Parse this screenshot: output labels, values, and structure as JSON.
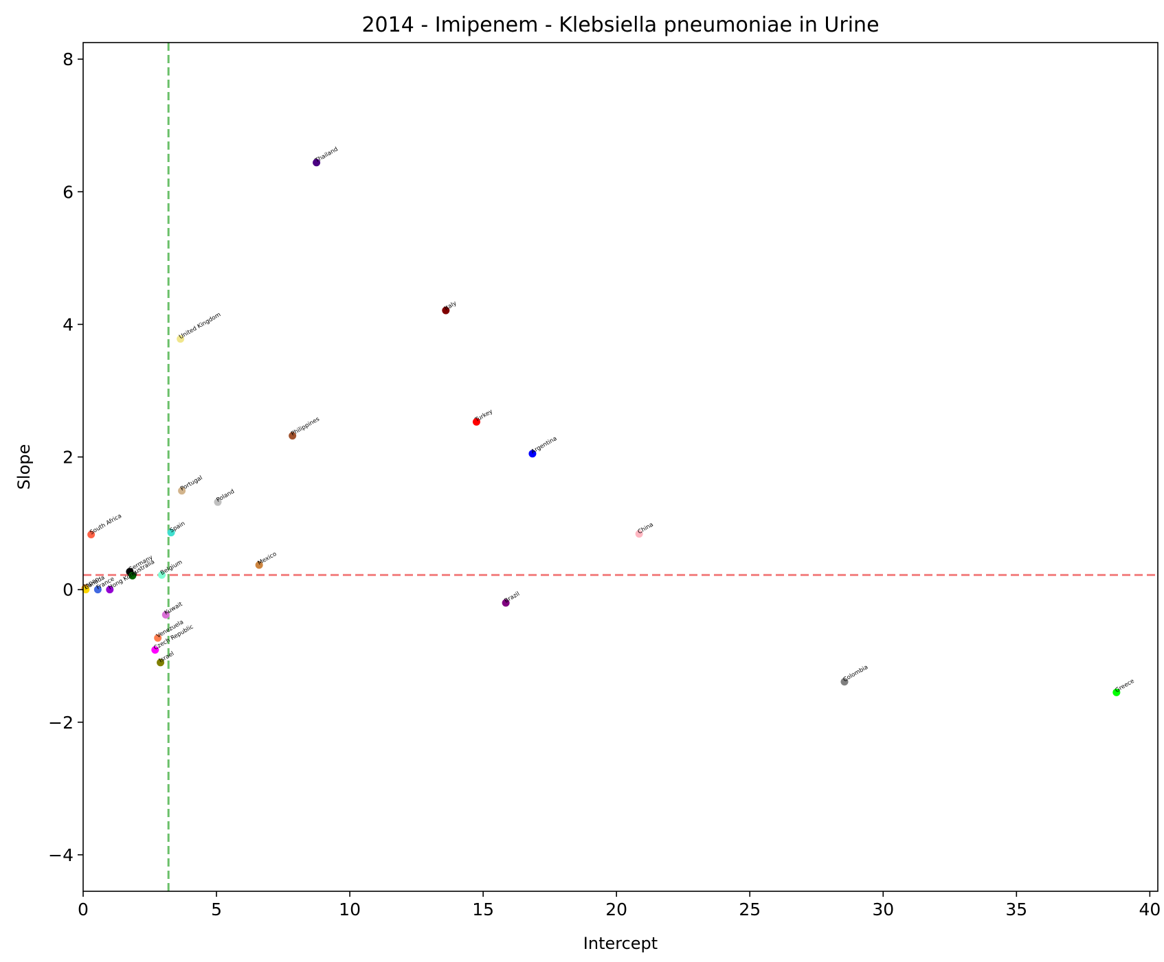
{
  "chart_data": {
    "type": "scatter",
    "title": "2014 - Imipenem - Klebsiella pneumoniae in Urine",
    "xlabel": "Intercept",
    "ylabel": "Slope",
    "xlim": [
      0,
      40.3
    ],
    "ylim": [
      -4.55,
      8.25
    ],
    "xticks": [
      0,
      5,
      10,
      15,
      20,
      25,
      30,
      35,
      40
    ],
    "xtick_labels": [
      "0",
      "5",
      "10",
      "15",
      "20",
      "25",
      "30",
      "35",
      "40"
    ],
    "yticks": [
      -4,
      -2,
      0,
      2,
      4,
      6,
      8
    ],
    "ytick_labels": [
      "−4",
      "−2",
      "0",
      "2",
      "4",
      "6",
      "8"
    ],
    "grid": false,
    "reference_lines": [
      {
        "orientation": "vertical",
        "value": 3.2,
        "color": "#6abf69",
        "style": "dashed"
      },
      {
        "orientation": "horizontal",
        "value": 0.22,
        "color": "#f28080",
        "style": "dashed"
      }
    ],
    "points": [
      {
        "label": "Thailand",
        "x": 8.75,
        "y": 6.44,
        "color": "#4b0082"
      },
      {
        "label": "Italy",
        "x": 13.6,
        "y": 4.21,
        "color": "#800000"
      },
      {
        "label": "United Kingdom",
        "x": 3.65,
        "y": 3.78,
        "color": "#f0e68c"
      },
      {
        "label": "Turkey",
        "x": 14.75,
        "y": 2.53,
        "color": "#ff0000"
      },
      {
        "label": "Philippines",
        "x": 7.85,
        "y": 2.32,
        "color": "#a0522d"
      },
      {
        "label": "Argentina",
        "x": 16.85,
        "y": 2.05,
        "color": "#0000ff"
      },
      {
        "label": "Portugal",
        "x": 3.7,
        "y": 1.49,
        "color": "#d2b48c"
      },
      {
        "label": "Poland",
        "x": 5.05,
        "y": 1.32,
        "color": "#c0c0c0"
      },
      {
        "label": "South Africa",
        "x": 0.3,
        "y": 0.83,
        "color": "#ff6347"
      },
      {
        "label": "Spain",
        "x": 3.3,
        "y": 0.86,
        "color": "#40e0d0"
      },
      {
        "label": "China",
        "x": 20.85,
        "y": 0.84,
        "color": "#ffb6c1"
      },
      {
        "label": "Mexico",
        "x": 6.6,
        "y": 0.37,
        "color": "#cd853f"
      },
      {
        "label": "Germany",
        "x": 1.75,
        "y": 0.27,
        "color": "#000000"
      },
      {
        "label": "Australia",
        "x": 1.85,
        "y": 0.21,
        "color": "#006400"
      },
      {
        "label": "Belgium",
        "x": 2.95,
        "y": 0.22,
        "color": "#7fffd4"
      },
      {
        "label": "France",
        "x": 0.55,
        "y": 0.0,
        "color": "#4169e1"
      },
      {
        "label": "Hong Kong",
        "x": 1.0,
        "y": 0.0,
        "color": "#9400d3"
      },
      {
        "label": "Japan",
        "x": 0.08,
        "y": 0.02,
        "color": "#ff8c00"
      },
      {
        "label": "Canada",
        "x": 0.1,
        "y": 0.0,
        "color": "#ffd700"
      },
      {
        "label": "Brazil",
        "x": 15.85,
        "y": -0.2,
        "color": "#800080"
      },
      {
        "label": "Kuwait",
        "x": 3.1,
        "y": -0.38,
        "color": "#da70d6"
      },
      {
        "label": "Venezuela",
        "x": 2.8,
        "y": -0.73,
        "color": "#ff7f50"
      },
      {
        "label": "Czech Republic",
        "x": 2.7,
        "y": -0.91,
        "color": "#ff00ff"
      },
      {
        "label": "Israel",
        "x": 2.9,
        "y": -1.1,
        "color": "#808000"
      },
      {
        "label": "Colombia",
        "x": 28.55,
        "y": -1.39,
        "color": "#808080"
      },
      {
        "label": "Greece",
        "x": 38.75,
        "y": -1.55,
        "color": "#00ff00"
      }
    ]
  }
}
